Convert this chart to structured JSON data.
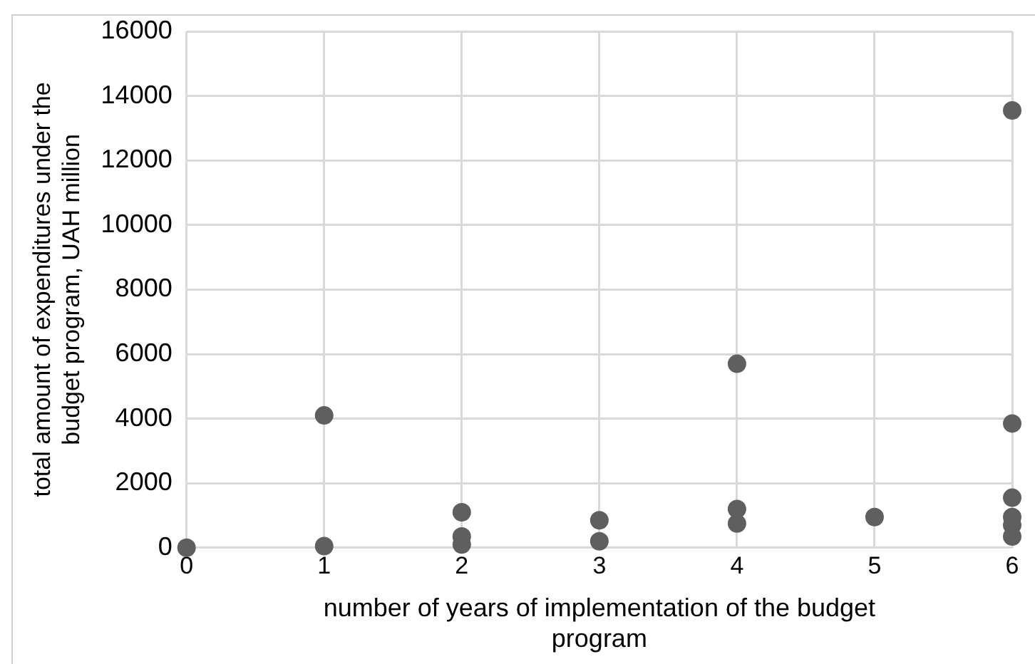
{
  "chart_data": {
    "type": "scatter",
    "xlabel": "number of years of implementation of the budget program",
    "ylabel": "total amount of expenditures under the budget program, UAH million",
    "series": [
      {
        "color": "#5f5f5f",
        "x": [
          0,
          1,
          1,
          2,
          2,
          2,
          3,
          3,
          4,
          4,
          4,
          5,
          6,
          6,
          6,
          6,
          6,
          6
        ],
        "values": [
          0,
          4100,
          50,
          1100,
          350,
          100,
          850,
          200,
          5700,
          1200,
          750,
          950,
          13550,
          3850,
          1550,
          950,
          700,
          350
        ]
      }
    ],
    "xlim": [
      0,
      6
    ],
    "xticks": [
      0,
      1,
      2,
      3,
      4,
      5,
      6
    ],
    "ylim": [
      0,
      16000
    ],
    "yticks": [
      0,
      2000,
      4000,
      6000,
      8000,
      10000,
      12000,
      14000,
      16000
    ],
    "grid": true,
    "legend": false,
    "marker": "circle"
  }
}
